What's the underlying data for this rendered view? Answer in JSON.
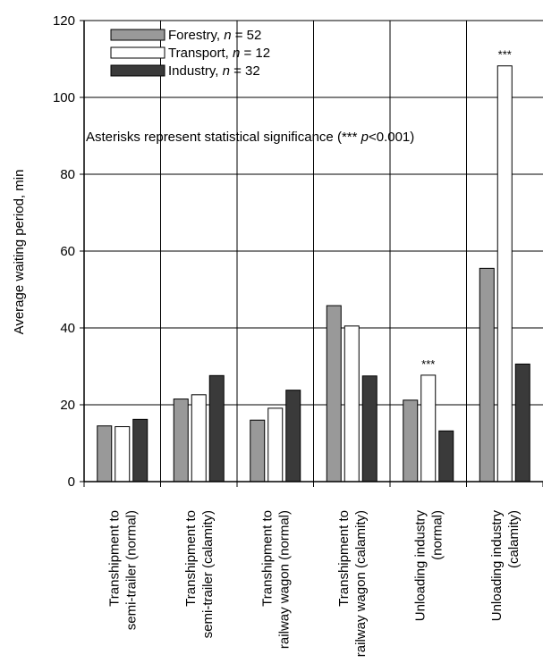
{
  "chart_data": {
    "type": "bar",
    "ylabel": "Average waiting period, min",
    "ylim": [
      0,
      120
    ],
    "yticks": [
      "0",
      "20",
      "40",
      "60",
      "80",
      "100",
      "120"
    ],
    "grid": true,
    "legend_position": "top-left",
    "categories": [
      [
        "Transhipment to",
        "semi-trailer (normal)"
      ],
      [
        "Transhipment to",
        "semi-trailer (calamity)"
      ],
      [
        "Transhipment to",
        "railway wagon (normal)"
      ],
      [
        "Transhipment to",
        "railway wagon (calamity)"
      ],
      [
        "Unloading industry",
        "(normal)"
      ],
      [
        "Unloading industry",
        "(calamity)"
      ]
    ],
    "series": [
      {
        "name": "Forestry, ",
        "n_label": "n",
        "n_value": " = 52",
        "color": "#999999",
        "values": [
          14.5,
          21.5,
          16,
          45.8,
          21.2,
          55.5
        ]
      },
      {
        "name": "Transport, ",
        "n_label": "n",
        "n_value": " = 12",
        "color": "#ffffff",
        "values": [
          14.3,
          22.6,
          19.1,
          40.5,
          27.7,
          108.2
        ]
      },
      {
        "name": "Industry, ",
        "n_label": "n",
        "n_value": " = 32",
        "color": "#3a3a3a",
        "values": [
          16.2,
          27.6,
          23.8,
          27.5,
          13.2,
          30.6
        ]
      }
    ],
    "annotations": [
      {
        "category_index": 4,
        "series_index": 1,
        "text": "***"
      },
      {
        "category_index": 5,
        "series_index": 1,
        "text": "***"
      }
    ],
    "note": {
      "prefix": "Asterisks represent statistical significance (*** ",
      "italic": "p",
      "suffix": "<0.001)"
    }
  }
}
